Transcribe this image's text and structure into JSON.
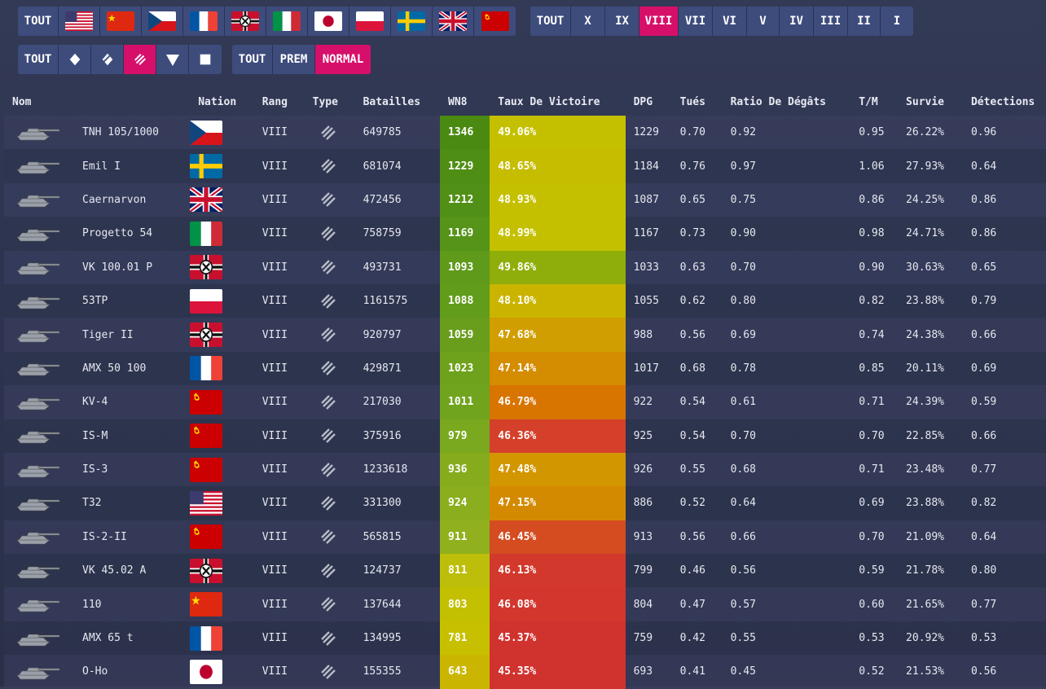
{
  "filters": {
    "nation_all": "TOUT",
    "nations": [
      "usa",
      "china",
      "czech",
      "france",
      "germany",
      "italy",
      "japan",
      "poland",
      "sweden",
      "uk",
      "ussr"
    ],
    "nation_active": "",
    "tiers": [
      "TOUT",
      "X",
      "IX",
      "VIII",
      "VII",
      "VI",
      "V",
      "IV",
      "III",
      "II",
      "I"
    ],
    "tier_active": "VIII",
    "class_all": "TOUT",
    "classes": [
      "light-tank-icon",
      "medium-tank-icon",
      "heavy-tank-icon",
      "td-icon",
      "spg-icon"
    ],
    "class_active": "heavy-tank-icon",
    "type_labels": [
      "TOUT",
      "PREM",
      "NORMAL"
    ],
    "type_active": "NORMAL"
  },
  "columns": [
    "Nom",
    "Nation",
    "Rang",
    "Type",
    "Batailles",
    "WN8",
    "Taux De Victoire",
    "DPG",
    "Tués",
    "Ratio De Dégâts",
    "T/M",
    "Survie",
    "Détections"
  ],
  "rows": [
    {
      "name": "TNH 105/1000",
      "nation": "czech",
      "tier": "VIII",
      "battles": "649785",
      "wn8": "1346",
      "wr": "49.06%",
      "dpg": "1229",
      "kills": "0.70",
      "dmg_ratio": "0.92",
      "kd": "0.95",
      "survival": "26.22%",
      "spots": "0.96",
      "wn8_color": "#4a8a12",
      "wr_color": "#c4c000"
    },
    {
      "name": "Emil I",
      "nation": "sweden",
      "tier": "VIII",
      "battles": "681074",
      "wn8": "1229",
      "wr": "48.65%",
      "dpg": "1184",
      "kills": "0.76",
      "dmg_ratio": "0.97",
      "kd": "1.06",
      "survival": "27.93%",
      "spots": "0.64",
      "wn8_color": "#4e8e14",
      "wr_color": "#c6bc00"
    },
    {
      "name": "Caernarvon",
      "nation": "uk",
      "tier": "VIII",
      "battles": "472456",
      "wn8": "1212",
      "wr": "48.93%",
      "dpg": "1087",
      "kills": "0.65",
      "dmg_ratio": "0.75",
      "kd": "0.86",
      "survival": "24.25%",
      "spots": "0.86",
      "wn8_color": "#509016",
      "wr_color": "#c4c000"
    },
    {
      "name": "Progetto 54",
      "nation": "italy",
      "tier": "VIII",
      "battles": "758759",
      "wn8": "1169",
      "wr": "48.99%",
      "dpg": "1167",
      "kills": "0.73",
      "dmg_ratio": "0.90",
      "kd": "0.98",
      "survival": "24.71%",
      "spots": "0.86",
      "wn8_color": "#559418",
      "wr_color": "#c4c000"
    },
    {
      "name": "VK 100.01 P",
      "nation": "germany",
      "tier": "VIII",
      "battles": "493731",
      "wn8": "1093",
      "wr": "49.86%",
      "dpg": "1033",
      "kills": "0.63",
      "dmg_ratio": "0.70",
      "kd": "0.90",
      "survival": "30.63%",
      "spots": "0.65",
      "wn8_color": "#5f9a1a",
      "wr_color": "#8fae0a"
    },
    {
      "name": "53TP",
      "nation": "poland",
      "tier": "VIII",
      "battles": "1161575",
      "wn8": "1088",
      "wr": "48.10%",
      "dpg": "1055",
      "kills": "0.62",
      "dmg_ratio": "0.80",
      "kd": "0.82",
      "survival": "23.88%",
      "spots": "0.79",
      "wn8_color": "#619c1a",
      "wr_color": "#cab400"
    },
    {
      "name": "Tiger II",
      "nation": "germany",
      "tier": "VIII",
      "battles": "920797",
      "wn8": "1059",
      "wr": "47.68%",
      "dpg": "988",
      "kills": "0.56",
      "dmg_ratio": "0.69",
      "kd": "0.74",
      "survival": "24.38%",
      "spots": "0.66",
      "wn8_color": "#689e1c",
      "wr_color": "#d09e00"
    },
    {
      "name": "AMX 50 100",
      "nation": "france",
      "tier": "VIII",
      "battles": "429871",
      "wn8": "1023",
      "wr": "47.14%",
      "dpg": "1017",
      "kills": "0.68",
      "dmg_ratio": "0.78",
      "kd": "0.85",
      "survival": "20.11%",
      "spots": "0.69",
      "wn8_color": "#6ea21c",
      "wr_color": "#d48c00"
    },
    {
      "name": "KV-4",
      "nation": "ussr",
      "tier": "VIII",
      "battles": "217030",
      "wn8": "1011",
      "wr": "46.79%",
      "dpg": "922",
      "kills": "0.54",
      "dmg_ratio": "0.61",
      "kd": "0.71",
      "survival": "24.39%",
      "spots": "0.59",
      "wn8_color": "#70a41e",
      "wr_color": "#d87400"
    },
    {
      "name": "IS-M",
      "nation": "ussr",
      "tier": "VIII",
      "battles": "375916",
      "wn8": "979",
      "wr": "46.36%",
      "dpg": "925",
      "kills": "0.54",
      "dmg_ratio": "0.70",
      "kd": "0.70",
      "survival": "22.85%",
      "spots": "0.66",
      "wn8_color": "#7aa81e",
      "wr_color": "#d4402a"
    },
    {
      "name": "IS-3",
      "nation": "ussr",
      "tier": "VIII",
      "battles": "1233618",
      "wn8": "936",
      "wr": "47.48%",
      "dpg": "926",
      "kills": "0.55",
      "dmg_ratio": "0.68",
      "kd": "0.71",
      "survival": "23.48%",
      "spots": "0.77",
      "wn8_color": "#86ac1e",
      "wr_color": "#d29600"
    },
    {
      "name": "T32",
      "nation": "usa",
      "tier": "VIII",
      "battles": "331300",
      "wn8": "924",
      "wr": "47.15%",
      "dpg": "886",
      "kills": "0.52",
      "dmg_ratio": "0.64",
      "kd": "0.69",
      "survival": "23.88%",
      "spots": "0.82",
      "wn8_color": "#8aae1e",
      "wr_color": "#d48a00"
    },
    {
      "name": "IS-2-II",
      "nation": "ussr",
      "tier": "VIII",
      "battles": "565815",
      "wn8": "911",
      "wr": "46.45%",
      "dpg": "913",
      "kills": "0.56",
      "dmg_ratio": "0.66",
      "kd": "0.70",
      "survival": "21.09%",
      "spots": "0.64",
      "wn8_color": "#90b01e",
      "wr_color": "#d44c20"
    },
    {
      "name": "VK 45.02 A",
      "nation": "germany",
      "tier": "VIII",
      "battles": "124737",
      "wn8": "811",
      "wr": "46.13%",
      "dpg": "799",
      "kills": "0.46",
      "dmg_ratio": "0.56",
      "kd": "0.59",
      "survival": "21.78%",
      "spots": "0.80",
      "wn8_color": "#bcbe0a",
      "wr_color": "#d2382c"
    },
    {
      "name": "110",
      "nation": "china",
      "tier": "VIII",
      "battles": "137644",
      "wn8": "803",
      "wr": "46.08%",
      "dpg": "804",
      "kills": "0.47",
      "dmg_ratio": "0.57",
      "kd": "0.60",
      "survival": "21.65%",
      "spots": "0.77",
      "wn8_color": "#c2c000",
      "wr_color": "#d2362c"
    },
    {
      "name": "AMX 65 t",
      "nation": "france",
      "tier": "VIII",
      "battles": "134995",
      "wn8": "781",
      "wr": "45.37%",
      "dpg": "759",
      "kills": "0.42",
      "dmg_ratio": "0.55",
      "kd": "0.53",
      "survival": "20.92%",
      "spots": "0.53",
      "wn8_color": "#c6c000",
      "wr_color": "#d0322e"
    },
    {
      "name": "O-Ho",
      "nation": "japan",
      "tier": "VIII",
      "battles": "155355",
      "wn8": "643",
      "wr": "45.35%",
      "dpg": "693",
      "kills": "0.41",
      "dmg_ratio": "0.45",
      "kd": "0.52",
      "survival": "21.53%",
      "spots": "0.56",
      "wn8_color": "#cab600",
      "wr_color": "#d0322e"
    }
  ]
}
